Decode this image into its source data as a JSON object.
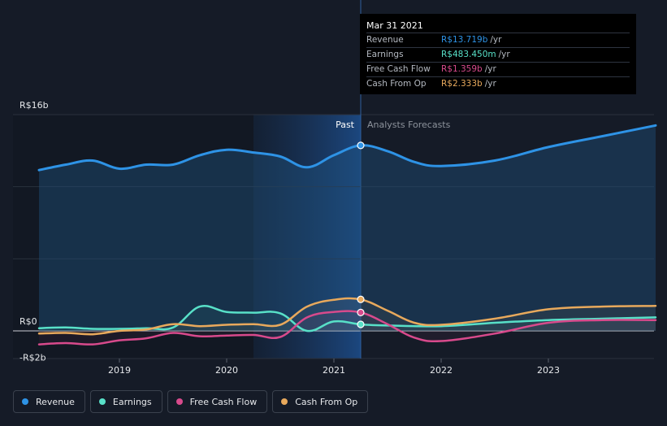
{
  "chart_data": {
    "type": "line",
    "y_unit": "R$ billions",
    "ylim": [
      -2,
      16
    ],
    "y_ticks": [
      {
        "value": 16,
        "label": "R$16b"
      },
      {
        "value": 0,
        "label": "R$0"
      },
      {
        "value": -2,
        "label": "-R$2b"
      }
    ],
    "xlim": [
      2018.25,
      2024.0
    ],
    "x_ticks": [
      {
        "value": 2019,
        "label": "2019"
      },
      {
        "value": 2020,
        "label": "2020"
      },
      {
        "value": 2021,
        "label": "2021"
      },
      {
        "value": 2022,
        "label": "2022"
      },
      {
        "value": 2023,
        "label": "2023"
      }
    ],
    "past_label": "Past",
    "forecast_label": "Analysts Forecasts",
    "divider_x": 2021.25,
    "highlight_start_x": 2020.25,
    "series": [
      {
        "name": "Revenue",
        "color": "#2e93e6",
        "area": true,
        "points": [
          [
            2018.25,
            11.9
          ],
          [
            2018.5,
            12.3
          ],
          [
            2018.75,
            12.6
          ],
          [
            2019.0,
            12.0
          ],
          [
            2019.25,
            12.3
          ],
          [
            2019.5,
            12.3
          ],
          [
            2019.75,
            13.0
          ],
          [
            2020.0,
            13.4
          ],
          [
            2020.25,
            13.2
          ],
          [
            2020.5,
            12.9
          ],
          [
            2020.75,
            12.1
          ],
          [
            2021.0,
            13.0
          ],
          [
            2021.25,
            13.72
          ],
          [
            2021.5,
            13.3
          ],
          [
            2021.75,
            12.5
          ],
          [
            2022.0,
            12.2
          ],
          [
            2022.5,
            12.6
          ],
          [
            2023.0,
            13.6
          ],
          [
            2023.5,
            14.4
          ],
          [
            2024.0,
            15.2
          ]
        ]
      },
      {
        "name": "Earnings",
        "color": "#58e0c8",
        "points": [
          [
            2018.25,
            0.2
          ],
          [
            2018.5,
            0.25
          ],
          [
            2018.75,
            0.15
          ],
          [
            2019.0,
            0.15
          ],
          [
            2019.25,
            0.2
          ],
          [
            2019.5,
            0.25
          ],
          [
            2019.75,
            1.8
          ],
          [
            2020.0,
            1.4
          ],
          [
            2020.25,
            1.35
          ],
          [
            2020.5,
            1.3
          ],
          [
            2020.75,
            0.0
          ],
          [
            2021.0,
            0.7
          ],
          [
            2021.25,
            0.48
          ],
          [
            2021.5,
            0.4
          ],
          [
            2022.0,
            0.35
          ],
          [
            2022.5,
            0.6
          ],
          [
            2023.0,
            0.8
          ],
          [
            2023.5,
            0.9
          ],
          [
            2024.0,
            1.0
          ]
        ]
      },
      {
        "name": "Free Cash Flow",
        "color": "#d84a8c",
        "points": [
          [
            2018.25,
            -1.0
          ],
          [
            2018.5,
            -0.9
          ],
          [
            2018.75,
            -1.0
          ],
          [
            2019.0,
            -0.7
          ],
          [
            2019.25,
            -0.55
          ],
          [
            2019.5,
            -0.15
          ],
          [
            2019.75,
            -0.4
          ],
          [
            2020.0,
            -0.35
          ],
          [
            2020.25,
            -0.3
          ],
          [
            2020.5,
            -0.45
          ],
          [
            2020.75,
            1.0
          ],
          [
            2021.0,
            1.4
          ],
          [
            2021.25,
            1.36
          ],
          [
            2021.5,
            0.5
          ],
          [
            2021.75,
            -0.5
          ],
          [
            2022.0,
            -0.75
          ],
          [
            2022.5,
            -0.2
          ],
          [
            2023.0,
            0.6
          ],
          [
            2023.5,
            0.8
          ],
          [
            2024.0,
            0.8
          ]
        ]
      },
      {
        "name": "Cash From Op",
        "color": "#e8a95c",
        "points": [
          [
            2018.25,
            -0.2
          ],
          [
            2018.5,
            -0.15
          ],
          [
            2018.75,
            -0.25
          ],
          [
            2019.0,
            0.0
          ],
          [
            2019.25,
            0.1
          ],
          [
            2019.5,
            0.5
          ],
          [
            2019.75,
            0.35
          ],
          [
            2020.0,
            0.45
          ],
          [
            2020.25,
            0.5
          ],
          [
            2020.5,
            0.45
          ],
          [
            2020.75,
            1.8
          ],
          [
            2021.0,
            2.3
          ],
          [
            2021.25,
            2.33
          ],
          [
            2021.5,
            1.5
          ],
          [
            2021.75,
            0.6
          ],
          [
            2022.0,
            0.45
          ],
          [
            2022.5,
            0.9
          ],
          [
            2023.0,
            1.6
          ],
          [
            2023.5,
            1.8
          ],
          [
            2024.0,
            1.85
          ]
        ]
      }
    ]
  },
  "tooltip": {
    "date": "Mar 31 2021",
    "rows": [
      {
        "label": "Revenue",
        "value": "R$13.719b",
        "unit": "/yr",
        "color": "#2e93e6"
      },
      {
        "label": "Earnings",
        "value": "R$483.450m",
        "unit": "/yr",
        "color": "#58e0c8"
      },
      {
        "label": "Free Cash Flow",
        "value": "R$1.359b",
        "unit": "/yr",
        "color": "#d84a8c"
      },
      {
        "label": "Cash From Op",
        "value": "R$2.333b",
        "unit": "/yr",
        "color": "#e8a95c"
      }
    ]
  },
  "legend": [
    {
      "label": "Revenue",
      "color": "#2e93e6"
    },
    {
      "label": "Earnings",
      "color": "#58e0c8"
    },
    {
      "label": "Free Cash Flow",
      "color": "#d84a8c"
    },
    {
      "label": "Cash From Op",
      "color": "#e8a95c"
    }
  ]
}
